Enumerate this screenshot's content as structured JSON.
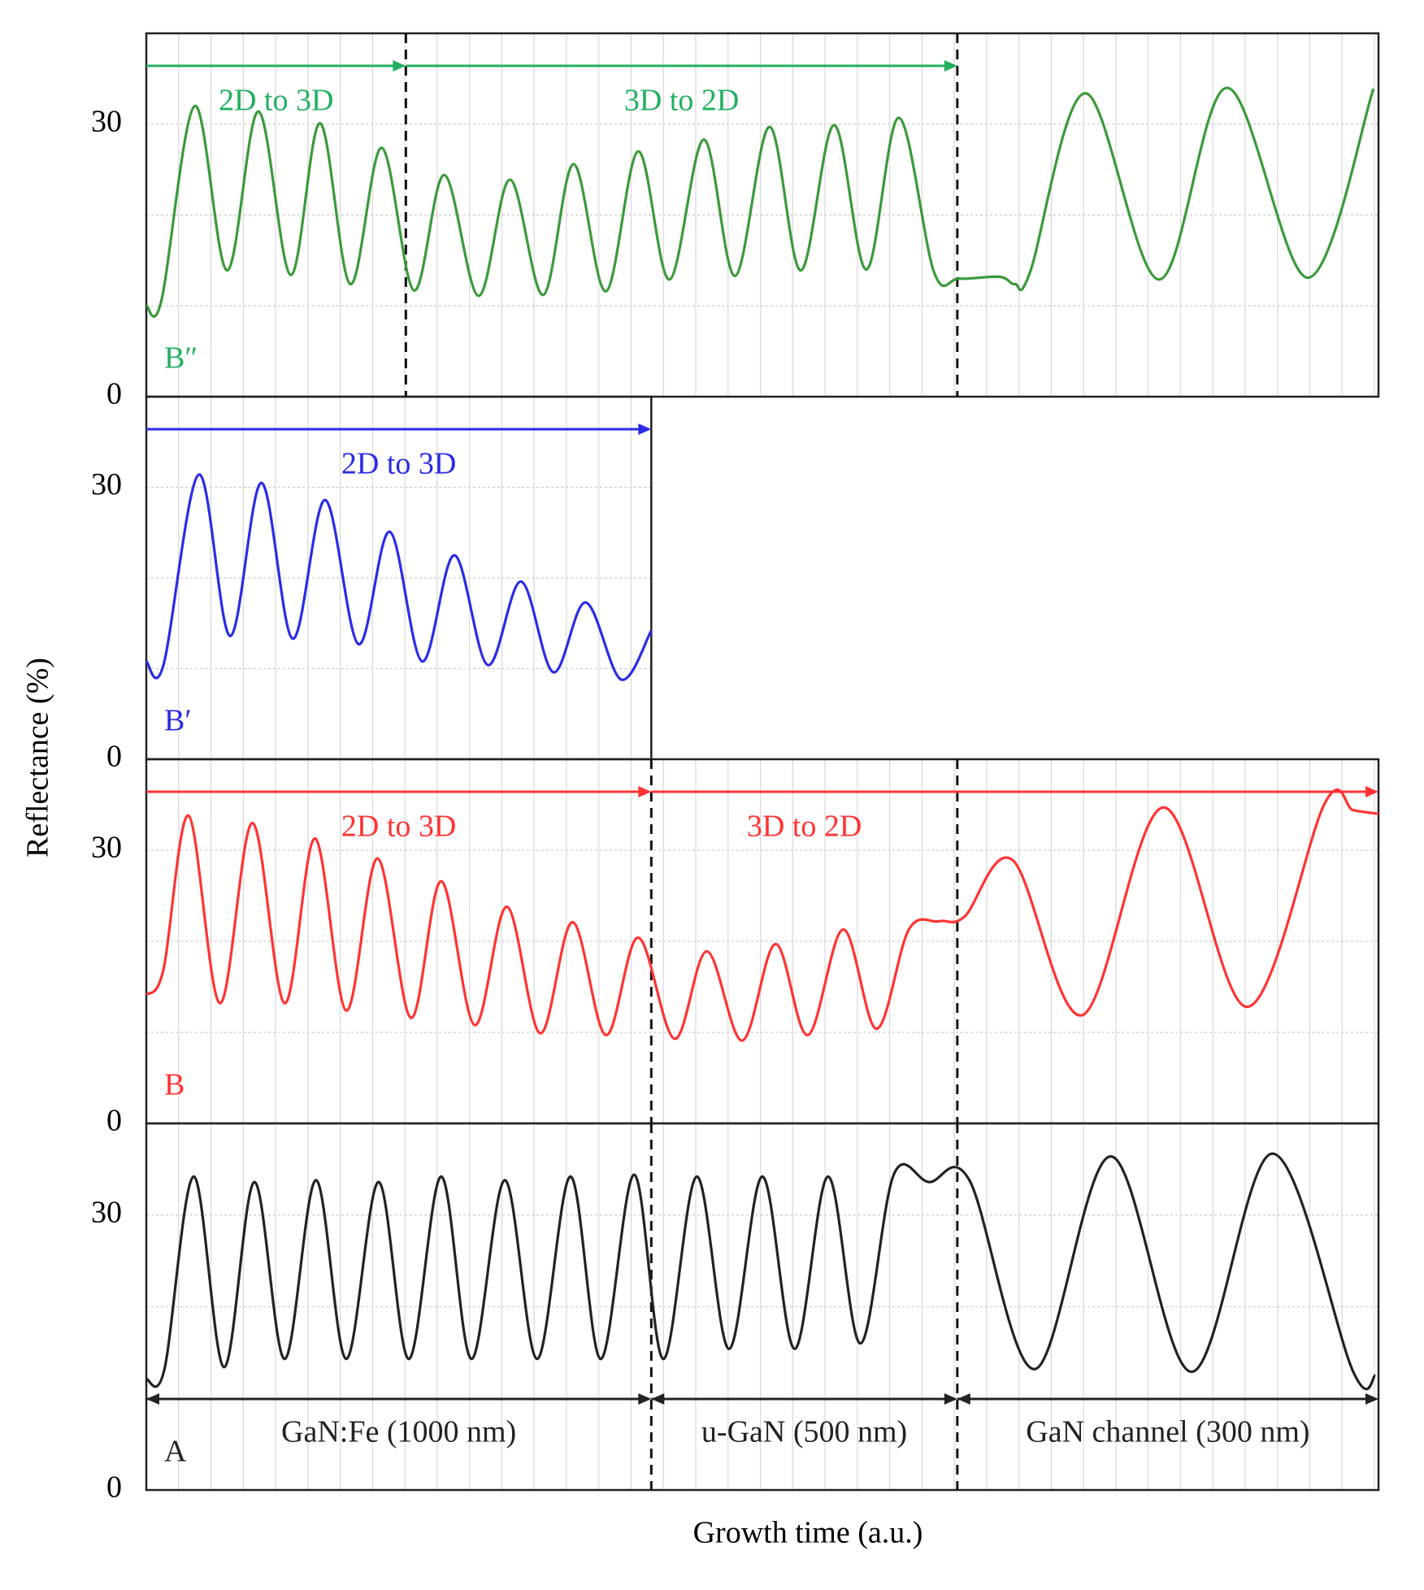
{
  "chart_data": {
    "type": "line",
    "xlabel": "Growth time (a.u.)",
    "ylabel": "Reflectance (%)",
    "ylim": [
      0,
      40
    ],
    "yticks": [
      0,
      30
    ],
    "ygrid": [
      10,
      20,
      30
    ],
    "xgrid": [
      32,
      64,
      96,
      128,
      160,
      192,
      224,
      256,
      288,
      320,
      352,
      384,
      416,
      448,
      480,
      512,
      544,
      576,
      608,
      640,
      672,
      704,
      736,
      768,
      800,
      832,
      864,
      896,
      928,
      960,
      992,
      1024,
      1056,
      1088,
      1120,
      1152,
      1184,
      1216
    ],
    "panels": [
      {
        "label": "B″",
        "color": "#3a9a3a",
        "text_color": "#22b060",
        "xlim": [
          0,
          1220
        ],
        "boundaries": [
          257,
          803
        ],
        "arrows": [
          {
            "from": 0,
            "to": 257,
            "text": "2D to 3D"
          },
          {
            "from": 257,
            "to": 803,
            "text": "3D to 2D"
          }
        ],
        "x": [
          0,
          15,
          48,
          80,
          111,
          143,
          172,
          202,
          233,
          265,
          295,
          329,
          360,
          393,
          423,
          455,
          487,
          518,
          552,
          583,
          617,
          648,
          681,
          713,
          745,
          780,
          805,
          845,
          860,
          875,
          930,
          1003,
          1070,
          1150,
          1215
        ],
        "values": [
          10.0,
          10.6,
          32,
          13.9,
          31.4,
          13.4,
          30.1,
          12.4,
          27.4,
          11.7,
          24.4,
          11.1,
          23.9,
          11.2,
          25.6,
          11.6,
          27.0,
          12.9,
          28.3,
          13.3,
          29.7,
          13.9,
          29.9,
          14.0,
          30.7,
          13.7,
          13.0,
          13.2,
          12.4,
          13.7,
          33.4,
          12.9,
          34.0,
          13.1,
          33.9
        ]
      },
      {
        "label": "B′",
        "color": "#2b2be6",
        "text_color": "#2b2be6",
        "xlim": [
          0,
          500
        ],
        "boundaries": [],
        "arrows": [
          {
            "from": 0,
            "to": 500,
            "text": "2D to 3D"
          }
        ],
        "x": [
          0,
          17,
          52,
          83,
          114,
          145,
          177,
          210,
          241,
          273,
          305,
          338,
          371,
          403,
          435,
          470,
          500
        ],
        "values": [
          10.8,
          10.4,
          31.4,
          13.6,
          30.5,
          13.3,
          28.6,
          12.7,
          25.1,
          10.8,
          22.5,
          10.4,
          19.6,
          9.6,
          17.3,
          8.8,
          14.2
        ]
      },
      {
        "label": "B",
        "color": "#ff3333",
        "text_color": "#ff3333",
        "xlim": [
          0,
          1220
        ],
        "boundaries": [
          500,
          803
        ],
        "arrows": [
          {
            "from": 0,
            "to": 500,
            "text": "2D to 3D"
          },
          {
            "from": 500,
            "to": 1220,
            "text": "3D to 2D"
          }
        ],
        "x": [
          0,
          17,
          42,
          73,
          105,
          137,
          167,
          198,
          229,
          262,
          292,
          325,
          357,
          390,
          422,
          455,
          487,
          523,
          555,
          590,
          623,
          655,
          690,
          723,
          755,
          785,
          810,
          858,
          927,
          1007,
          1090,
          1167,
          1195,
          1220
        ],
        "values": [
          14.1,
          16.9,
          33.8,
          13.2,
          33.0,
          13.2,
          31.3,
          12.4,
          29.1,
          11.6,
          26.6,
          10.8,
          23.8,
          9.9,
          22.1,
          9.7,
          20.4,
          9.3,
          18.9,
          9.1,
          19.7,
          9.7,
          21.3,
          10.4,
          21.3,
          22.2,
          22.7,
          28.9,
          11.9,
          34.7,
          12.8,
          35.2,
          34.4,
          34.0
        ]
      },
      {
        "label": "A",
        "color": "#222222",
        "text_color": "#222222",
        "xlim": [
          0,
          1220
        ],
        "boundaries": [
          500,
          803
        ],
        "arrow_style": "double",
        "arrows": [
          {
            "from": 0,
            "to": 500,
            "text": "GaN:Fe (1000 nm)"
          },
          {
            "from": 500,
            "to": 803,
            "text": "u-GaN (500 nm)"
          },
          {
            "from": 803,
            "to": 1220,
            "text": "GaN channel (300 nm)"
          }
        ],
        "x": [
          0,
          18,
          47,
          77,
          107,
          137,
          168,
          198,
          230,
          260,
          292,
          322,
          355,
          387,
          420,
          450,
          483,
          512,
          545,
          577,
          610,
          642,
          675,
          707,
          740,
          775,
          815,
          880,
          955,
          1035,
          1115,
          1195,
          1217
        ],
        "values": [
          12.1,
          13.2,
          34.2,
          13.4,
          33.6,
          14.3,
          33.8,
          14.3,
          33.6,
          14.3,
          34.2,
          14.3,
          33.8,
          14.3,
          34.2,
          14.3,
          34.4,
          14.3,
          34.2,
          15.4,
          34.2,
          15.4,
          34.2,
          16.0,
          34.4,
          33.6,
          33.8,
          13.2,
          36.4,
          12.9,
          36.7,
          12.9,
          12.5
        ]
      }
    ]
  }
}
